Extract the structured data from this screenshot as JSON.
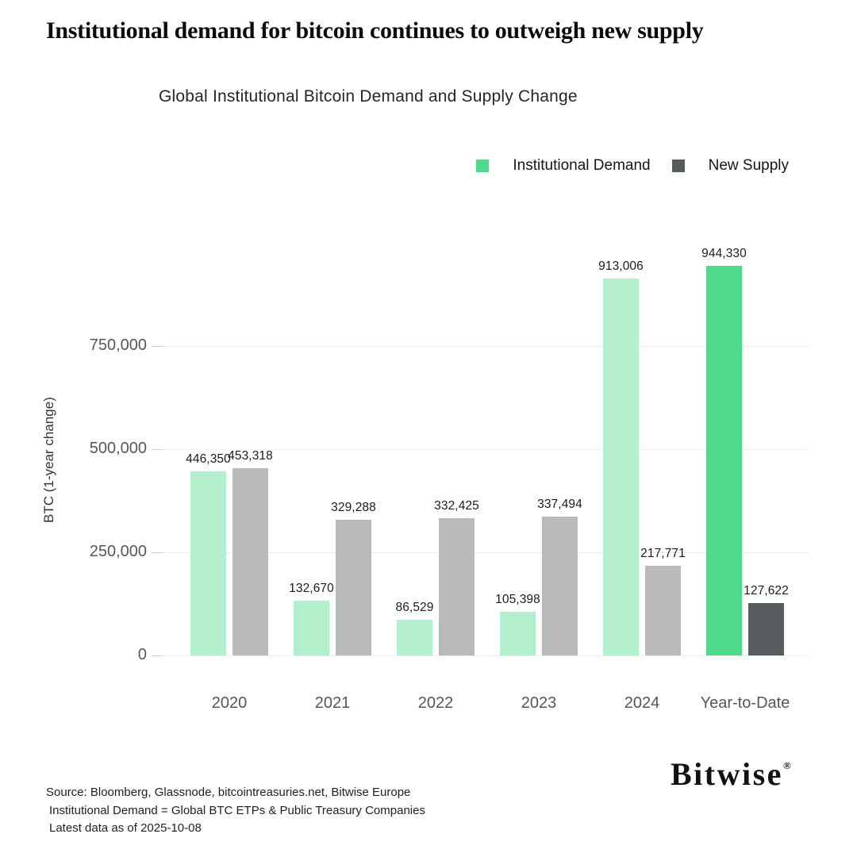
{
  "page": {
    "headline": "Institutional demand for bitcoin continues to outweigh new supply",
    "footer_lines": [
      "Source: Bloomberg, Glassnode, bitcointreasuries.net, Bitwise Europe",
      "Institutional Demand = Global BTC ETPs & Public Treasury Companies",
      "Latest data as of 2025-10-08"
    ],
    "logo_text": "Bitwise",
    "logo_mark": "®"
  },
  "chart_data": {
    "type": "bar",
    "title": "Global Institutional Bitcoin Demand and Supply Change",
    "ylabel": "BTC (1-year change)",
    "xlabel": "",
    "categories": [
      "2020",
      "2021",
      "2022",
      "2023",
      "2024",
      "Year-to-Date"
    ],
    "series": [
      {
        "name": "Institutional Demand",
        "color": "#b5f0ce",
        "emphasis_color": "#4fd98c",
        "values": [
          446350,
          132670,
          86529,
          105398,
          913006,
          944330
        ],
        "labels": [
          "446,350",
          "132,670",
          "86,529",
          "105,398",
          "913,006",
          "944,330"
        ]
      },
      {
        "name": "New Supply",
        "color": "#b9bbba",
        "emphasis_color": "#575c5e",
        "values": [
          453318,
          329288,
          332425,
          337494,
          217771,
          127622
        ],
        "labels": [
          "453,318",
          "329,288",
          "332,425",
          "337,494",
          "217,771",
          "127,622"
        ]
      }
    ],
    "emphasized_category": "Year-to-Date",
    "y_ticks": [
      {
        "value": 0,
        "label": "0"
      },
      {
        "value": 250000,
        "label": "250,000"
      },
      {
        "value": 500000,
        "label": "500,000"
      },
      {
        "value": 750000,
        "label": "750,000"
      }
    ],
    "ylim": [
      0,
      950000
    ],
    "grid": true,
    "legend_position": "top-right"
  }
}
